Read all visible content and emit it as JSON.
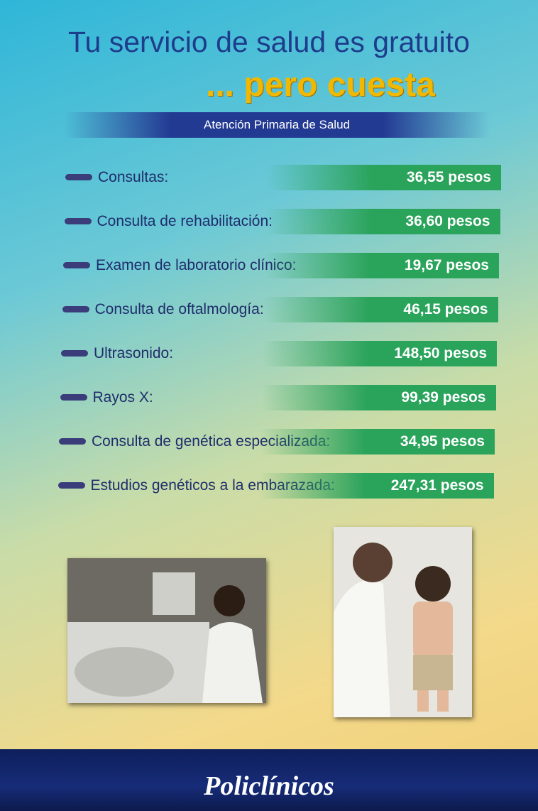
{
  "header": {
    "title": "Tu servicio de salud es gratuito",
    "subtitle": "... pero cuesta",
    "section": "Atención Primaria de Salud"
  },
  "items": [
    {
      "label": "Consultas:",
      "price": "36,55 pesos"
    },
    {
      "label": "Consulta de rehabilitación:",
      "price": "36,60 pesos"
    },
    {
      "label": "Examen de laboratorio clínico:",
      "price": "19,67 pesos"
    },
    {
      "label": "Consulta de oftalmología:",
      "price": "46,15 pesos"
    },
    {
      "label": "Ultrasonido:",
      "price": "148,50 pesos"
    },
    {
      "label": "Rayos X:",
      "price": "99,39 pesos"
    },
    {
      "label": "Consulta de genética especializada:",
      "price": "34,95 pesos"
    },
    {
      "label": "Estudios genéticos a la embarazada:",
      "price": "247,31 pesos"
    }
  ],
  "footer": {
    "brand": "Policlínicos"
  }
}
